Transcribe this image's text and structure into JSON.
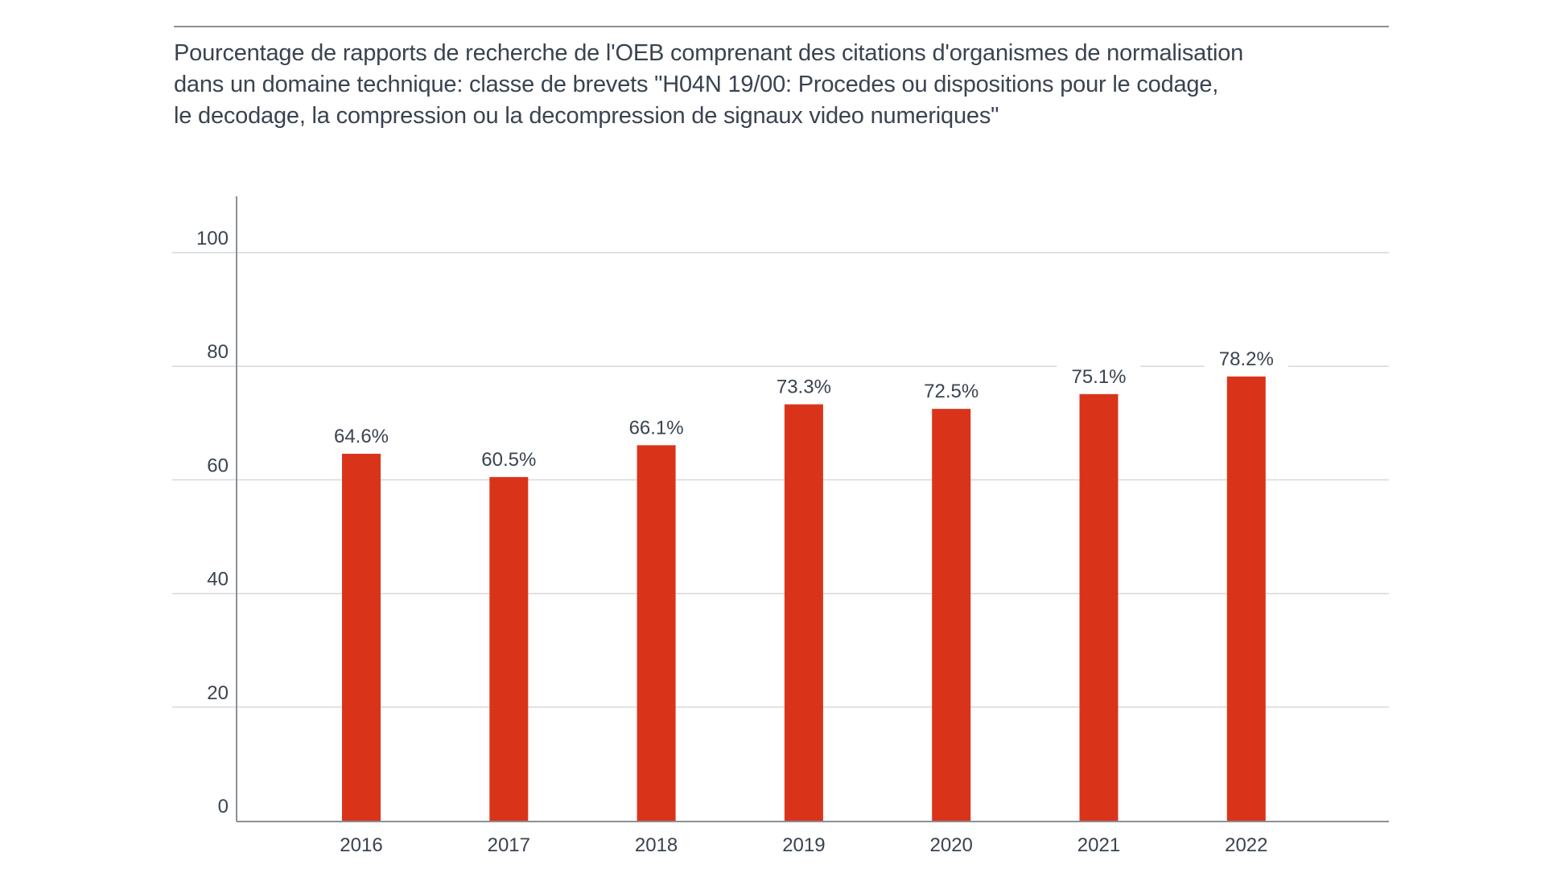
{
  "header": {
    "title_lines": [
      "Pourcentage de rapports de recherche de l'OEB comprenant des citations d'organismes de normalisation",
      "dans un domaine technique: classe de brevets \"H04N 19/00: Procedes ou dispositions pour le codage,",
      "le decodage, la compression ou la decompression de signaux video numeriques\""
    ]
  },
  "colors": {
    "bar": "#d9341a",
    "text": "#3a4350",
    "axis": "#8c9097",
    "grid": "#d6d8dc"
  },
  "chart_data": {
    "type": "bar",
    "title": "Pourcentage de rapports de recherche de l'OEB comprenant des citations d'organismes de normalisation dans un domaine technique: classe de brevets \"H04N 19/00: Procedes ou dispositions pour le codage, le decodage, la compression ou la decompression de signaux video numeriques\"",
    "xlabel": "",
    "ylabel": "",
    "categories": [
      "2016",
      "2017",
      "2018",
      "2019",
      "2020",
      "2021",
      "2022"
    ],
    "values": [
      64.6,
      60.5,
      66.1,
      73.3,
      72.5,
      75.1,
      78.2
    ],
    "data_labels": [
      "64.6%",
      "60.5%",
      "66.1%",
      "73.3%",
      "72.5%",
      "75.1%",
      "78.2%"
    ],
    "ylim": [
      0,
      110
    ],
    "yticks": [
      0,
      20,
      40,
      60,
      80,
      100
    ],
    "ytick_labels": [
      "0",
      "20",
      "40",
      "60",
      "80",
      "100"
    ],
    "grid": true,
    "legend": "none"
  }
}
